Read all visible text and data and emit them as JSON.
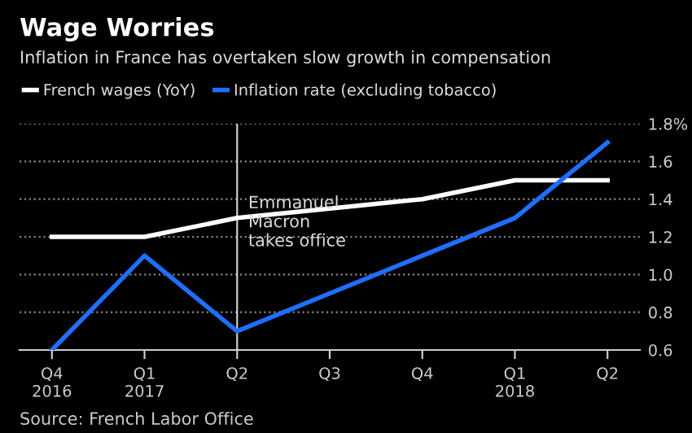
{
  "chart_data": {
    "type": "line",
    "title": "Wage Worries",
    "subtitle": "Inflation in France has overtaken slow growth in compensation",
    "categories": [
      "Q4\n2016",
      "Q1\n2017",
      "Q2",
      "Q3",
      "Q4",
      "Q1\n2018",
      "Q2"
    ],
    "series": [
      {
        "name": "French wages (YoY)",
        "color": "#ffffff",
        "values": [
          1.2,
          1.2,
          1.3,
          1.35,
          1.4,
          1.5,
          1.5
        ]
      },
      {
        "name": "Inflation rate (excluding tobacco)",
        "color": "#1f6fff",
        "values": [
          0.6,
          1.1,
          0.7,
          0.9,
          1.1,
          1.3,
          1.7
        ]
      }
    ],
    "ylim": [
      0.6,
      1.8
    ],
    "yticks": [
      0.6,
      0.8,
      {
        "value": 1.0,
        "label": "1.0"
      },
      1.2,
      1.4,
      1.6,
      {
        "value": 1.8,
        "label": "1.8%"
      }
    ],
    "ref_lines": [
      {
        "axis": "x",
        "value": "Q2",
        "label": "Emmanuel\nMacron\ntakes office",
        "color": "#cccccc"
      }
    ],
    "annotations": [
      "Source: French Labor Office"
    ],
    "grid": "y",
    "legend": "top left",
    "marker": "none",
    "line_style": "solid"
  }
}
